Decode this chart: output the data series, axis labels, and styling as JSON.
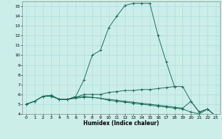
{
  "xlabel": "Humidex (Indice chaleur)",
  "xlim": [
    -0.5,
    23.5
  ],
  "ylim": [
    4,
    15.5
  ],
  "xticks": [
    0,
    1,
    2,
    3,
    4,
    5,
    6,
    7,
    8,
    9,
    10,
    11,
    12,
    13,
    14,
    15,
    16,
    17,
    18,
    19,
    20,
    21,
    22,
    23
  ],
  "yticks": [
    4,
    5,
    6,
    7,
    8,
    9,
    10,
    11,
    12,
    13,
    14,
    15
  ],
  "bg_color": "#cceee8",
  "grid_color": "#aadddd",
  "line_color": "#1a6b5a",
  "curves": [
    {
      "x": [
        0,
        1,
        2,
        3,
        4,
        5,
        6,
        7,
        8,
        9,
        10,
        11,
        12,
        13,
        14,
        15,
        16,
        17,
        18,
        19,
        20,
        21,
        22,
        23
      ],
      "y": [
        5.0,
        5.3,
        5.8,
        5.8,
        5.5,
        5.5,
        5.8,
        7.5,
        10.0,
        10.5,
        12.8,
        14.0,
        15.1,
        15.3,
        15.3,
        15.3,
        12.0,
        9.3,
        6.8,
        6.8,
        5.3,
        4.2,
        4.5,
        3.8
      ]
    },
    {
      "x": [
        0,
        1,
        2,
        3,
        4,
        5,
        6,
        7,
        8,
        9,
        10,
        11,
        12,
        13,
        14,
        15,
        16,
        17,
        18
      ],
      "y": [
        5.0,
        5.3,
        5.8,
        5.9,
        5.5,
        5.5,
        5.7,
        6.0,
        6.0,
        6.0,
        6.2,
        6.3,
        6.4,
        6.4,
        6.5,
        6.5,
        6.6,
        6.7,
        6.8
      ]
    },
    {
      "x": [
        0,
        1,
        2,
        3,
        4,
        5,
        6,
        7,
        8,
        9,
        10,
        11,
        12,
        13,
        14,
        15,
        16,
        17,
        18,
        19,
        20,
        21,
        22,
        23
      ],
      "y": [
        5.0,
        5.3,
        5.8,
        5.9,
        5.5,
        5.5,
        5.7,
        5.8,
        5.7,
        5.6,
        5.5,
        5.4,
        5.3,
        5.2,
        5.1,
        5.0,
        4.9,
        4.8,
        4.7,
        4.6,
        5.3,
        4.2,
        4.5,
        3.8
      ]
    },
    {
      "x": [
        0,
        1,
        2,
        3,
        4,
        5,
        6,
        7,
        8,
        9,
        10,
        11,
        12,
        13,
        14,
        15,
        16,
        17,
        18,
        19,
        20,
        21,
        22,
        23
      ],
      "y": [
        5.0,
        5.3,
        5.8,
        5.9,
        5.5,
        5.5,
        5.6,
        5.7,
        5.7,
        5.6,
        5.4,
        5.3,
        5.2,
        5.1,
        5.0,
        4.9,
        4.8,
        4.7,
        4.6,
        4.5,
        4.2,
        4.0,
        4.5,
        3.8
      ]
    }
  ]
}
